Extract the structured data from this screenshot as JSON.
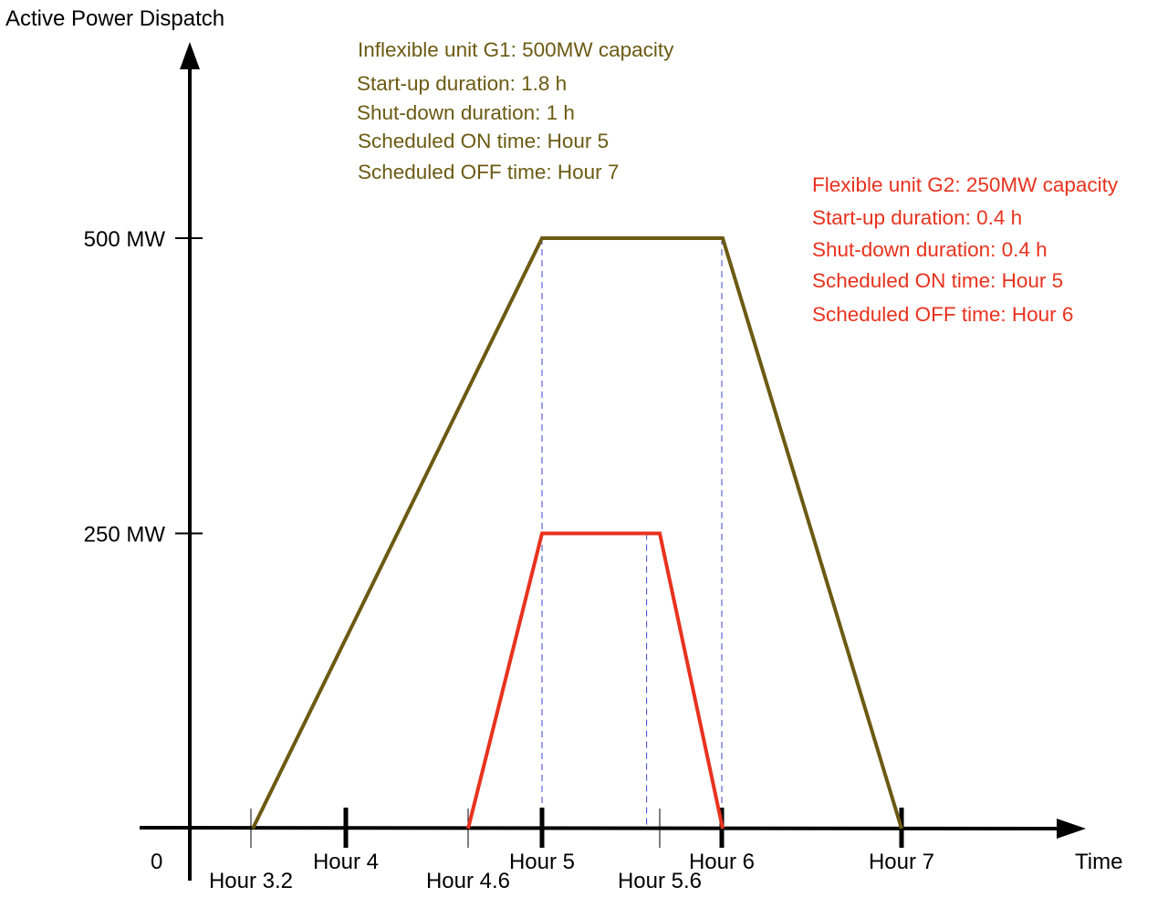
{
  "y_axis_label": "Active Power Dispatch",
  "x_axis_label": "Time",
  "origin_label": "0",
  "y_ticks": [
    {
      "label": "500 MW",
      "value": 500
    },
    {
      "label": "250 MW",
      "value": 250
    }
  ],
  "x_ticks": [
    {
      "label": "Hour 3.2",
      "value": 3.2,
      "major": false,
      "row": "lower"
    },
    {
      "label": "Hour 4",
      "value": 4,
      "major": true,
      "row": "upper"
    },
    {
      "label": "Hour 4.6",
      "value": 4.6,
      "major": false,
      "row": "lower"
    },
    {
      "label": "Hour 5",
      "value": 5,
      "major": true,
      "row": "upper"
    },
    {
      "label": "Hour 5.6",
      "value": 5.6,
      "major": false,
      "row": "lower"
    },
    {
      "label": "Hour 6",
      "value": 6,
      "major": true,
      "row": "upper"
    },
    {
      "label": "Hour 7",
      "value": 7,
      "major": true,
      "row": "upper"
    }
  ],
  "colors": {
    "g1": "#6b5a12",
    "g2": "#e8321e",
    "axis": "#000000",
    "guide": "#3a46d6"
  },
  "g1": {
    "lines": [
      "Inflexible unit G1: 500MW capacity",
      "Start-up duration: 1.8 h",
      "Shut-down duration: 1 h",
      "Scheduled ON time: Hour 5",
      "Scheduled OFF time: Hour 7"
    ],
    "profile": [
      {
        "hour": 3.2,
        "mw": 0
      },
      {
        "hour": 5,
        "mw": 500
      },
      {
        "hour": 6,
        "mw": 500
      },
      {
        "hour": 7,
        "mw": 0
      }
    ]
  },
  "g2": {
    "lines": [
      "Flexible unit G2: 250MW capacity",
      "Start-up duration: 0.4 h",
      "Shut-down duration: 0.4 h",
      "Scheduled ON time: Hour 5",
      "Scheduled OFF time: Hour 6"
    ],
    "profile": [
      {
        "hour": 4.6,
        "mw": 0
      },
      {
        "hour": 5,
        "mw": 250
      },
      {
        "hour": 5.6,
        "mw": 250
      },
      {
        "hour": 6,
        "mw": 0
      }
    ]
  },
  "guides": [
    {
      "hour": 5,
      "mw": 500
    },
    {
      "hour": 5.6,
      "mw": 250
    },
    {
      "hour": 6,
      "mw": 500
    }
  ]
}
